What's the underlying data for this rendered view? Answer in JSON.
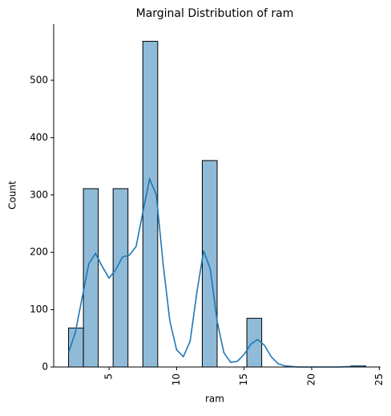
{
  "chart_data": {
    "type": "histogram",
    "title": "Marginal Distribution of ram",
    "xlabel": "ram",
    "ylabel": "Count",
    "bins": [
      2,
      3.1,
      4.2,
      5.3,
      6.4,
      7.5,
      8.6,
      9.7,
      10.8,
      11.9,
      13,
      14.1,
      15.2,
      16.3,
      17.4,
      18.5,
      19.6,
      20.7,
      21.8,
      22.9,
      24
    ],
    "values": [
      68,
      311,
      0,
      311,
      0,
      568,
      0,
      0,
      0,
      360,
      0,
      0,
      85,
      0,
      0,
      0,
      0,
      0,
      0,
      2
    ],
    "color": "#8fbbd9",
    "edgecolor": "#000000",
    "kde": {
      "color": "#1f77b4",
      "x": [
        2,
        2.5,
        3,
        3.5,
        4,
        4.5,
        5,
        5.5,
        6,
        6.5,
        7,
        7.5,
        8,
        8.5,
        9,
        9.5,
        10,
        10.5,
        11,
        11.5,
        12,
        12.5,
        13,
        13.5,
        14,
        14.5,
        15,
        15.5,
        16,
        16.5,
        17,
        17.5,
        18,
        19,
        20,
        21,
        22,
        23,
        24
      ],
      "values": [
        25,
        60,
        120,
        180,
        198,
        175,
        155,
        170,
        192,
        195,
        210,
        270,
        328,
        300,
        180,
        80,
        30,
        18,
        45,
        130,
        203,
        170,
        80,
        25,
        8,
        10,
        22,
        40,
        48,
        38,
        18,
        6,
        2,
        0,
        0,
        0,
        0,
        1,
        1
      ]
    },
    "xlim": [
      0.9,
      25.1
    ],
    "xticks": [
      5,
      10,
      15,
      20,
      25
    ],
    "ylim": [
      0,
      598
    ],
    "yticks": [
      0,
      100,
      200,
      300,
      400,
      500
    ]
  }
}
